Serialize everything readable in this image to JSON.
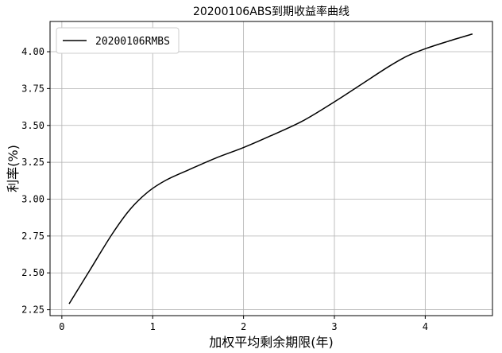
{
  "chart_data": {
    "type": "line",
    "title": "20200106ABS到期收益率曲线",
    "xlabel": "加权平均剩余期限(年)",
    "ylabel": "利率(%)",
    "xlim": [
      -0.13,
      4.74
    ],
    "ylim": [
      2.21,
      4.205
    ],
    "xticks": [
      0,
      1,
      2,
      3,
      4
    ],
    "xtick_labels": [
      "0",
      "1",
      "2",
      "3",
      "4"
    ],
    "yticks": [
      2.25,
      2.5,
      2.75,
      3.0,
      3.25,
      3.5,
      3.75,
      4.0
    ],
    "ytick_labels": [
      "2.25",
      "2.50",
      "2.75",
      "3.00",
      "3.25",
      "3.50",
      "3.75",
      "4.00"
    ],
    "grid": true,
    "legend_position": "top-left",
    "series": [
      {
        "name": "20200106RMBS",
        "color": "#000000",
        "x": [
          0.08,
          0.3,
          0.55,
          0.75,
          0.95,
          1.15,
          1.4,
          1.7,
          2.0,
          2.3,
          2.65,
          3.0,
          3.3,
          3.6,
          3.8,
          4.0,
          4.25,
          4.52
        ],
        "y": [
          2.29,
          2.51,
          2.76,
          2.93,
          3.05,
          3.13,
          3.2,
          3.28,
          3.35,
          3.43,
          3.53,
          3.66,
          3.78,
          3.9,
          3.97,
          4.02,
          4.07,
          4.12
        ]
      }
    ]
  }
}
